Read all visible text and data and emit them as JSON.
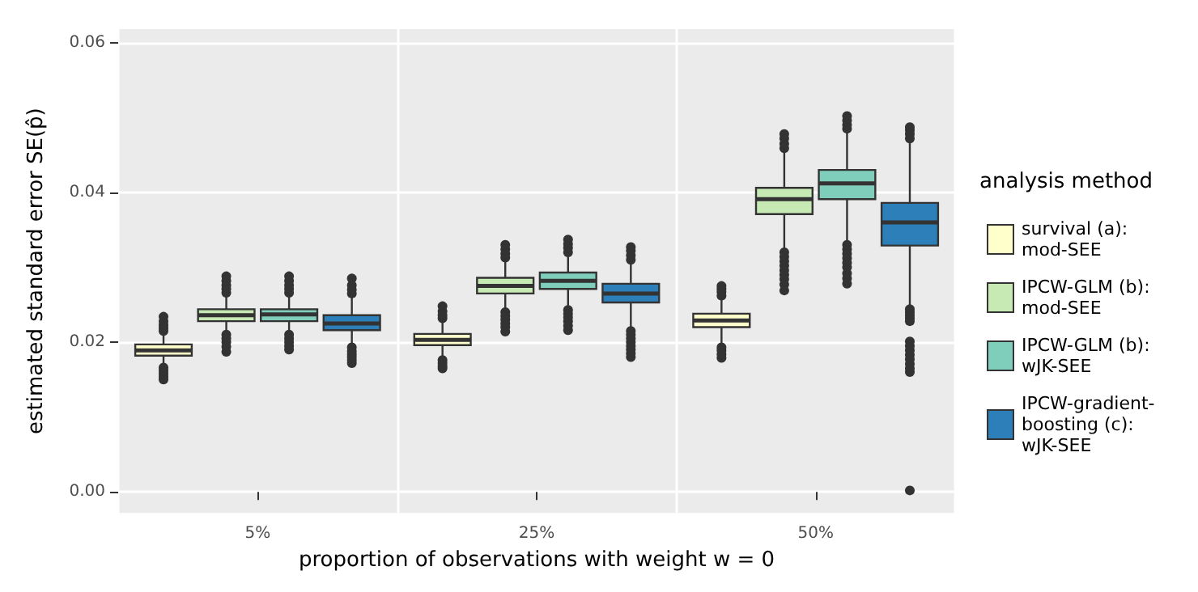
{
  "chart_data": {
    "type": "box",
    "xlabel": "proportion of observations with weight w = 0",
    "ylabel": "estimated standard error SE(p̂)",
    "legend_title": "analysis method",
    "legend": "right",
    "grid": true,
    "categories": [
      "5%",
      "25%",
      "50%"
    ],
    "ylim": [
      -0.0028,
      0.0618
    ],
    "yticks": [
      {
        "value": 0,
        "label": "0.00"
      },
      {
        "value": 0.02,
        "label": "0.02"
      },
      {
        "value": 0.04,
        "label": "0.04"
      },
      {
        "value": 0.06,
        "label": "0.06"
      }
    ],
    "series": [
      {
        "name": "survival (a): mod-SEE",
        "color": "#ffffcc",
        "boxes": [
          {
            "low": 0.017,
            "q1": 0.0182,
            "median": 0.0189,
            "q3": 0.0197,
            "high": 0.0211,
            "outliers": [
              0.0215,
              0.0219,
              0.0223,
              0.0228,
              0.0234,
              0.0166,
              0.0162,
              0.0158,
              0.0154,
              0.015
            ]
          },
          {
            "low": 0.018,
            "q1": 0.0196,
            "median": 0.0203,
            "q3": 0.0211,
            "high": 0.0228,
            "outliers": [
              0.0232,
              0.0236,
              0.0241,
              0.0248,
              0.0176,
              0.0172,
              0.0168,
              0.0165
            ]
          },
          {
            "low": 0.0197,
            "q1": 0.022,
            "median": 0.0229,
            "q3": 0.0238,
            "high": 0.0258,
            "outliers": [
              0.0262,
              0.0267,
              0.0271,
              0.0275,
              0.0193,
              0.0189,
              0.0184,
              0.0179
            ]
          }
        ]
      },
      {
        "name": "IPCW-GLM (b): mod-SEE",
        "color": "#c7e9b4",
        "boxes": [
          {
            "low": 0.0214,
            "q1": 0.0228,
            "median": 0.0236,
            "q3": 0.0244,
            "high": 0.0261,
            "outliers": [
              0.0266,
              0.0271,
              0.0276,
              0.0282,
              0.0288,
              0.021,
              0.0205,
              0.02,
              0.0194,
              0.0187
            ]
          },
          {
            "low": 0.0244,
            "q1": 0.0265,
            "median": 0.0275,
            "q3": 0.0286,
            "high": 0.0308,
            "outliers": [
              0.0313,
              0.0318,
              0.0324,
              0.033,
              0.024,
              0.0235,
              0.023,
              0.0225,
              0.022,
              0.0214
            ]
          },
          {
            "low": 0.0325,
            "q1": 0.0371,
            "median": 0.0391,
            "q3": 0.0406,
            "high": 0.0453,
            "outliers": [
              0.0459,
              0.0465,
              0.0472,
              0.0478,
              0.032,
              0.0314,
              0.0308,
              0.0302,
              0.0296,
              0.029,
              0.0284,
              0.0277,
              0.0269
            ]
          }
        ]
      },
      {
        "name": "IPCW-GLM (b): wJK-SEE",
        "color": "#7fcdbb",
        "boxes": [
          {
            "low": 0.0214,
            "q1": 0.0228,
            "median": 0.0237,
            "q3": 0.0244,
            "high": 0.0261,
            "outliers": [
              0.0266,
              0.0271,
              0.0276,
              0.0282,
              0.0288,
              0.021,
              0.0205,
              0.02,
              0.0195,
              0.019
            ]
          },
          {
            "low": 0.0248,
            "q1": 0.0271,
            "median": 0.0282,
            "q3": 0.0293,
            "high": 0.0315,
            "outliers": [
              0.032,
              0.0326,
              0.0331,
              0.0337,
              0.0243,
              0.0238,
              0.0233,
              0.0228,
              0.0222,
              0.0216
            ]
          },
          {
            "low": 0.0335,
            "q1": 0.0391,
            "median": 0.0412,
            "q3": 0.043,
            "high": 0.048,
            "outliers": [
              0.0485,
              0.049,
              0.0496,
              0.0502,
              0.033,
              0.0324,
              0.0318,
              0.0312,
              0.0306,
              0.03,
              0.0292,
              0.0285,
              0.0278
            ]
          }
        ]
      },
      {
        "name": "IPCW-gradient-boosting (c): wJK-SEE",
        "color": "#2c7fb8",
        "boxes": [
          {
            "low": 0.0197,
            "q1": 0.0216,
            "median": 0.0225,
            "q3": 0.0236,
            "high": 0.026,
            "outliers": [
              0.0265,
              0.027,
              0.0276,
              0.0285,
              0.0193,
              0.0188,
              0.0184,
              0.018,
              0.0176,
              0.0172
            ]
          },
          {
            "low": 0.022,
            "q1": 0.0253,
            "median": 0.0265,
            "q3": 0.0278,
            "high": 0.0305,
            "outliers": [
              0.031,
              0.0316,
              0.0322,
              0.0327,
              0.0215,
              0.021,
              0.0205,
              0.02,
              0.0195,
              0.019,
              0.0185,
              0.018
            ]
          },
          {
            "low": 0.0248,
            "q1": 0.0329,
            "median": 0.036,
            "q3": 0.0386,
            "high": 0.0467,
            "outliers": [
              0.0472,
              0.0478,
              0.0483,
              0.0487,
              0.0244,
              0.024,
              0.0236,
              0.0232,
              0.0228,
              0.0201,
              0.0195,
              0.0189,
              0.0183,
              0.0177,
              0.0171,
              0.0165,
              0.016,
              0.0002
            ]
          }
        ]
      }
    ]
  }
}
